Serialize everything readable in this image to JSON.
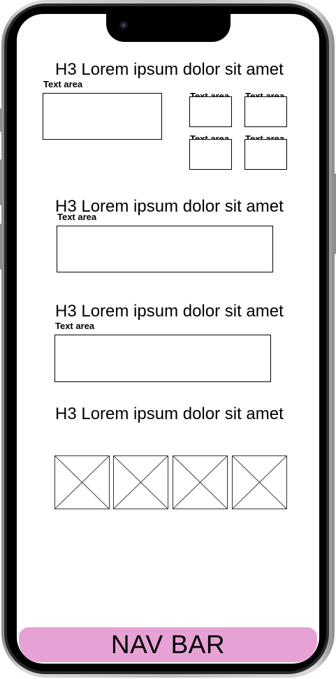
{
  "sections": [
    {
      "heading": "H3 Lorem ipsum dolor sit amet",
      "main_text_area": "Text area",
      "small_text_areas": [
        "Text area",
        "Text area",
        "Text area",
        "Text area"
      ]
    },
    {
      "heading": "H3 Lorem ipsum dolor sit amet",
      "text_area": "Text area"
    },
    {
      "heading": "H3 Lorem ipsum dolor sit amet",
      "text_area": "Text area"
    },
    {
      "heading": "H3 Lorem ipsum dolor sit amet",
      "image_placeholders": 4
    }
  ],
  "nav_bar": {
    "label": "NAV BAR",
    "color": "#e6a2d5"
  }
}
